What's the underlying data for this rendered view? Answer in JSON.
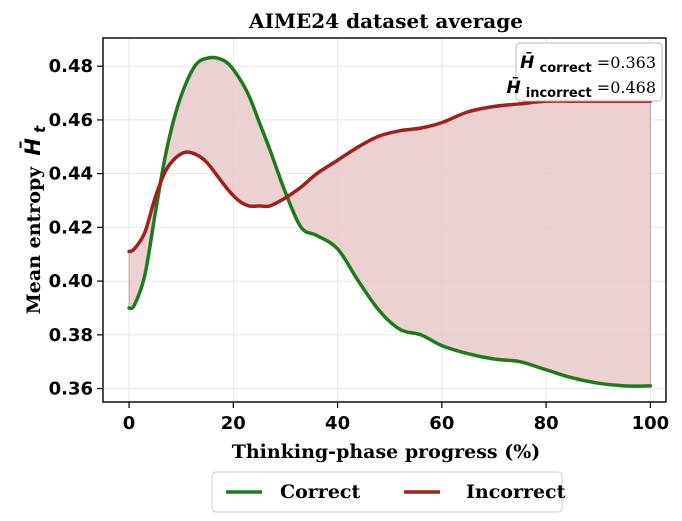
{
  "chart_data": {
    "type": "line",
    "title": "AIME24 dataset average",
    "xlabel": "Thinking-phase progress (%)",
    "ylabel_text": "Mean entropy",
    "ylabel_symbol": "H̄",
    "ylabel_subscript": "t",
    "xlim": [
      -5,
      103
    ],
    "ylim": [
      0.355,
      0.4905
    ],
    "xticks": [
      0,
      20,
      40,
      60,
      80,
      100
    ],
    "yticks": [
      0.36,
      0.38,
      0.4,
      0.42,
      0.44,
      0.46,
      0.48
    ],
    "ytick_labels": [
      "0.36",
      "0.38",
      "0.40",
      "0.42",
      "0.44",
      "0.46",
      "0.48"
    ],
    "grid": true,
    "legend_position": "bottom-center",
    "fill_between": {
      "color": "#e8c9c9",
      "from_series": "Correct",
      "to_series": "Incorrect",
      "x_range": [
        34,
        100
      ]
    },
    "series": [
      {
        "name": "Correct",
        "color": "#1f7a1f",
        "x": [
          0,
          1,
          3,
          5,
          7,
          9,
          11,
          13,
          15,
          17,
          19,
          21,
          23,
          25,
          27,
          30,
          33,
          36,
          40,
          44,
          48,
          52,
          56,
          60,
          65,
          70,
          75,
          80,
          85,
          90,
          95,
          100
        ],
        "y": [
          0.39,
          0.391,
          0.402,
          0.425,
          0.447,
          0.463,
          0.474,
          0.481,
          0.483,
          0.483,
          0.481,
          0.476,
          0.469,
          0.459,
          0.449,
          0.433,
          0.42,
          0.417,
          0.412,
          0.4,
          0.389,
          0.382,
          0.38,
          0.376,
          0.373,
          0.371,
          0.37,
          0.367,
          0.364,
          0.362,
          0.361,
          0.361
        ]
      },
      {
        "name": "Incorrect",
        "color": "#a11f1f",
        "x": [
          0,
          1,
          3,
          5,
          7,
          9,
          11,
          13,
          15,
          17,
          19,
          21,
          23,
          25,
          27,
          30,
          33,
          36,
          40,
          44,
          48,
          52,
          56,
          60,
          65,
          70,
          75,
          80,
          85,
          90,
          95,
          100
        ],
        "y": [
          0.411,
          0.412,
          0.418,
          0.431,
          0.441,
          0.446,
          0.448,
          0.447,
          0.444,
          0.439,
          0.434,
          0.43,
          0.428,
          0.428,
          0.428,
          0.431,
          0.435,
          0.44,
          0.445,
          0.45,
          0.454,
          0.456,
          0.457,
          0.459,
          0.463,
          0.465,
          0.466,
          0.467,
          0.467,
          0.467,
          0.467,
          0.467
        ]
      }
    ],
    "annotation": {
      "position": "top-right",
      "lines": [
        {
          "symbol": "H̄",
          "subscript": "correct",
          "value": "=0.363"
        },
        {
          "symbol": "H̄",
          "subscript": "incorrect",
          "value": "=0.468"
        }
      ]
    }
  }
}
